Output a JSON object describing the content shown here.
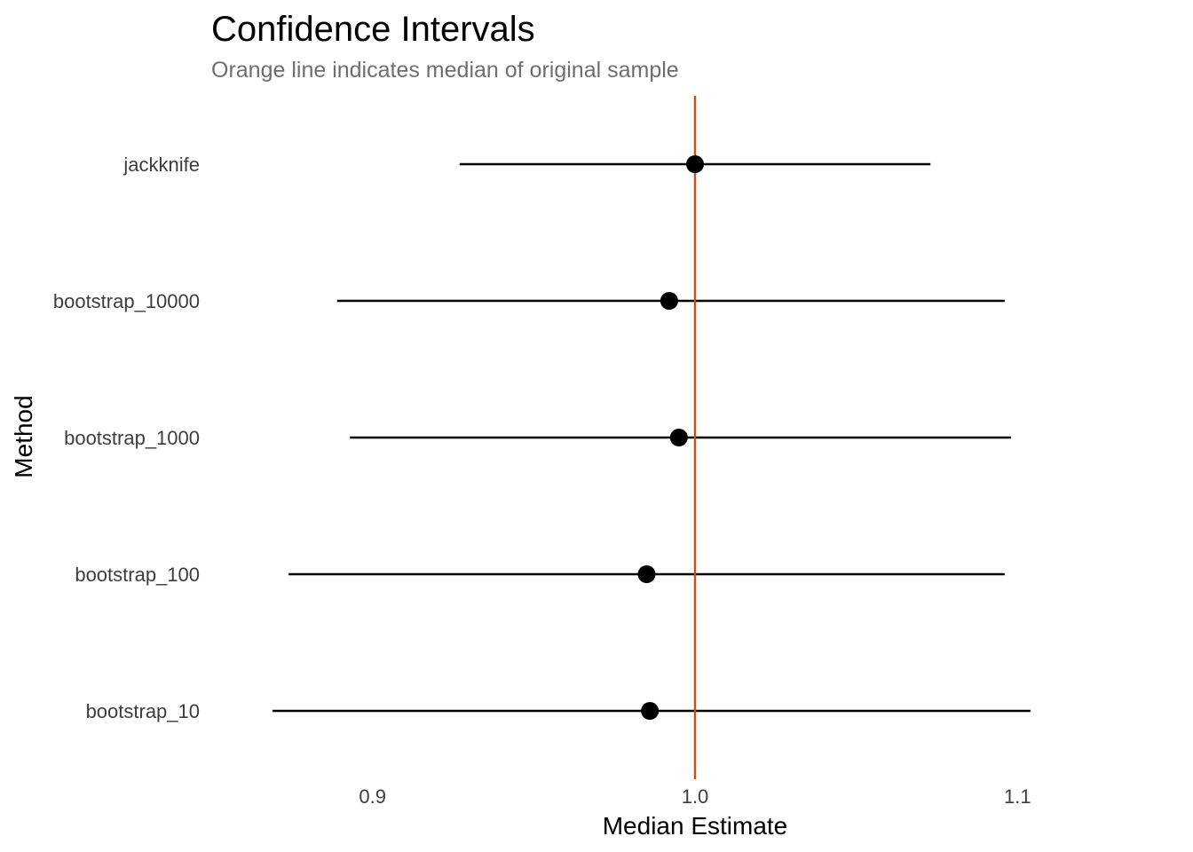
{
  "chart_data": {
    "type": "scatter",
    "title": "Confidence Intervals",
    "subtitle": "Orange line indicates median of original sample",
    "xlabel": "Median Estimate",
    "ylabel": "Method",
    "xlim": [
      0.85,
      1.15
    ],
    "xticks": [
      0.9,
      1.0,
      1.1
    ],
    "xtick_labels": [
      "0.9",
      "1.0",
      "1.1"
    ],
    "categories": [
      "bootstrap_10",
      "bootstrap_100",
      "bootstrap_1000",
      "bootstrap_10000",
      "jackknife"
    ],
    "estimates": [
      0.986,
      0.985,
      0.995,
      0.992,
      1.0
    ],
    "lower": [
      0.869,
      0.874,
      0.893,
      0.889,
      0.927
    ],
    "upper": [
      1.104,
      1.096,
      1.098,
      1.096,
      1.073
    ],
    "reference_line": 1.0,
    "reference_color": "#c0531c",
    "point_color": "#000000",
    "grid": false
  }
}
